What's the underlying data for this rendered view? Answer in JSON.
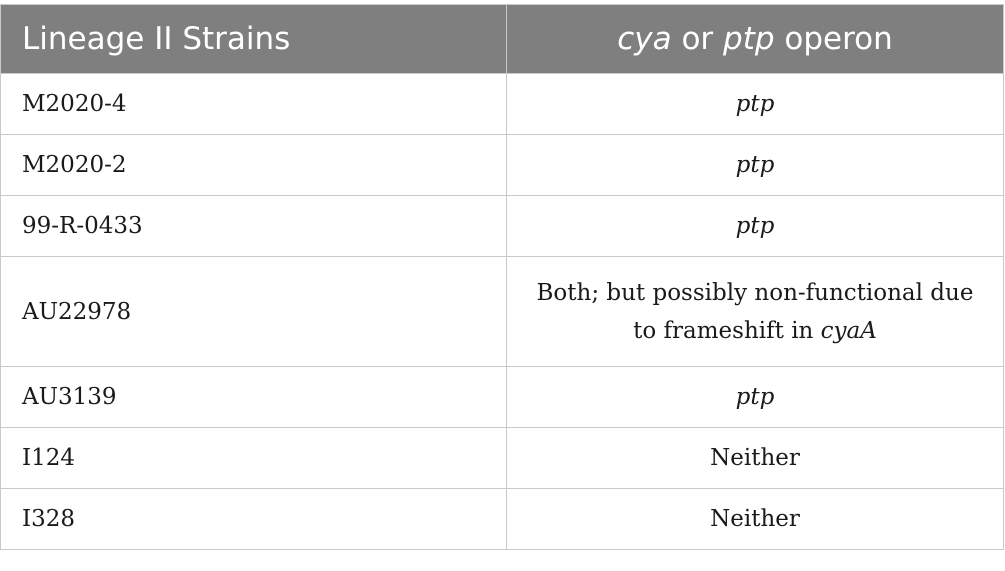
{
  "table": {
    "header": {
      "col1": "Lineage II Strains",
      "col2_part1": "cya",
      "col2_part2": " or ",
      "col2_part3": "ptp",
      "col2_part4": " operon"
    },
    "rows": [
      {
        "strain": "M2020-4",
        "operon": "ptp"
      },
      {
        "strain": "M2020-2",
        "operon": "ptp"
      },
      {
        "strain": "99-R-0433",
        "operon": "ptp"
      },
      {
        "strain": "AU22978",
        "operon_line1": "Both; but possibly non-functional due",
        "operon_line2_prefix": "to frameshift in ",
        "operon_line2_gene": "cyaA"
      },
      {
        "strain": "AU3139",
        "operon": "ptp"
      },
      {
        "strain": "I124",
        "operon": "Neither"
      },
      {
        "strain": "I328",
        "operon": "Neither"
      }
    ]
  }
}
